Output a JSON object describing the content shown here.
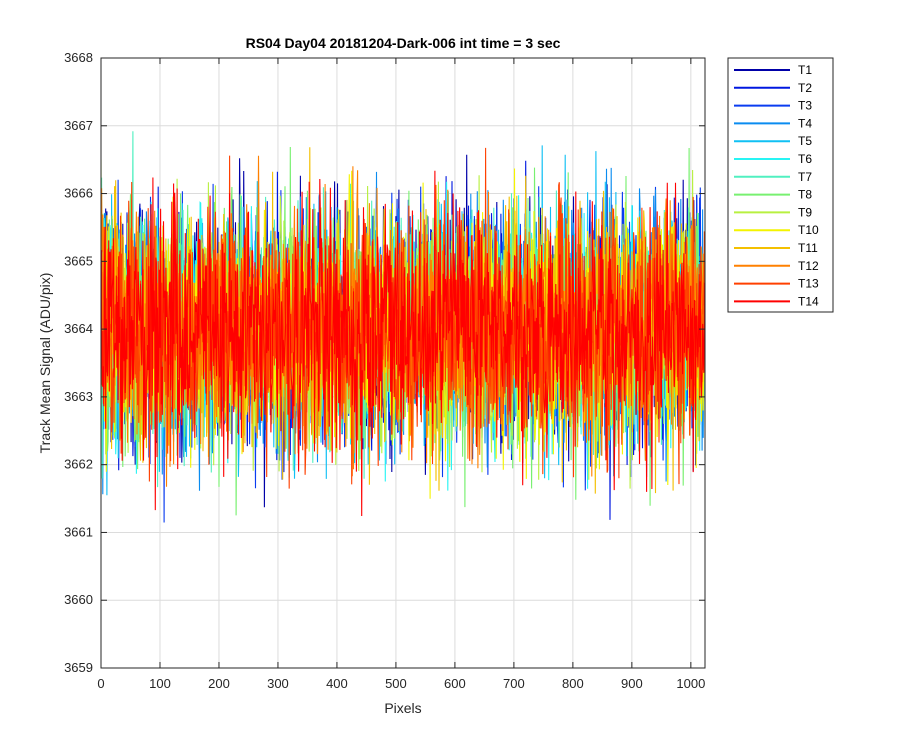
{
  "chart_data": {
    "type": "line",
    "title": "RS04 Day04 20181204-Dark-006 int time = 3 sec",
    "xlabel": "Pixels",
    "ylabel": "Track Mean Signal (ADU/pix)",
    "xlim": [
      0,
      1024
    ],
    "ylim": [
      3659,
      3668
    ],
    "xticks": [
      0,
      100,
      200,
      300,
      400,
      500,
      600,
      700,
      800,
      900,
      1000
    ],
    "yticks": [
      3659,
      3660,
      3661,
      3662,
      3663,
      3664,
      3665,
      3666,
      3667,
      3668
    ],
    "grid": true,
    "legend_location": "outside-right-top",
    "mean": 3664,
    "noise_std": 0.85,
    "series": [
      {
        "name": "T1",
        "color": "#0000a8"
      },
      {
        "name": "T2",
        "color": "#0018e0"
      },
      {
        "name": "T3",
        "color": "#0a3cf0"
      },
      {
        "name": "T4",
        "color": "#0a8cf0"
      },
      {
        "name": "T5",
        "color": "#10c0f4"
      },
      {
        "name": "T6",
        "color": "#28f4f4"
      },
      {
        "name": "T7",
        "color": "#50f0c0"
      },
      {
        "name": "T8",
        "color": "#78f070"
      },
      {
        "name": "T9",
        "color": "#b8f040"
      },
      {
        "name": "T10",
        "color": "#f4f400"
      },
      {
        "name": "T11",
        "color": "#f4c000"
      },
      {
        "name": "T12",
        "color": "#ff8000"
      },
      {
        "name": "T13",
        "color": "#ff4000"
      },
      {
        "name": "T14",
        "color": "#ff0000"
      }
    ]
  }
}
